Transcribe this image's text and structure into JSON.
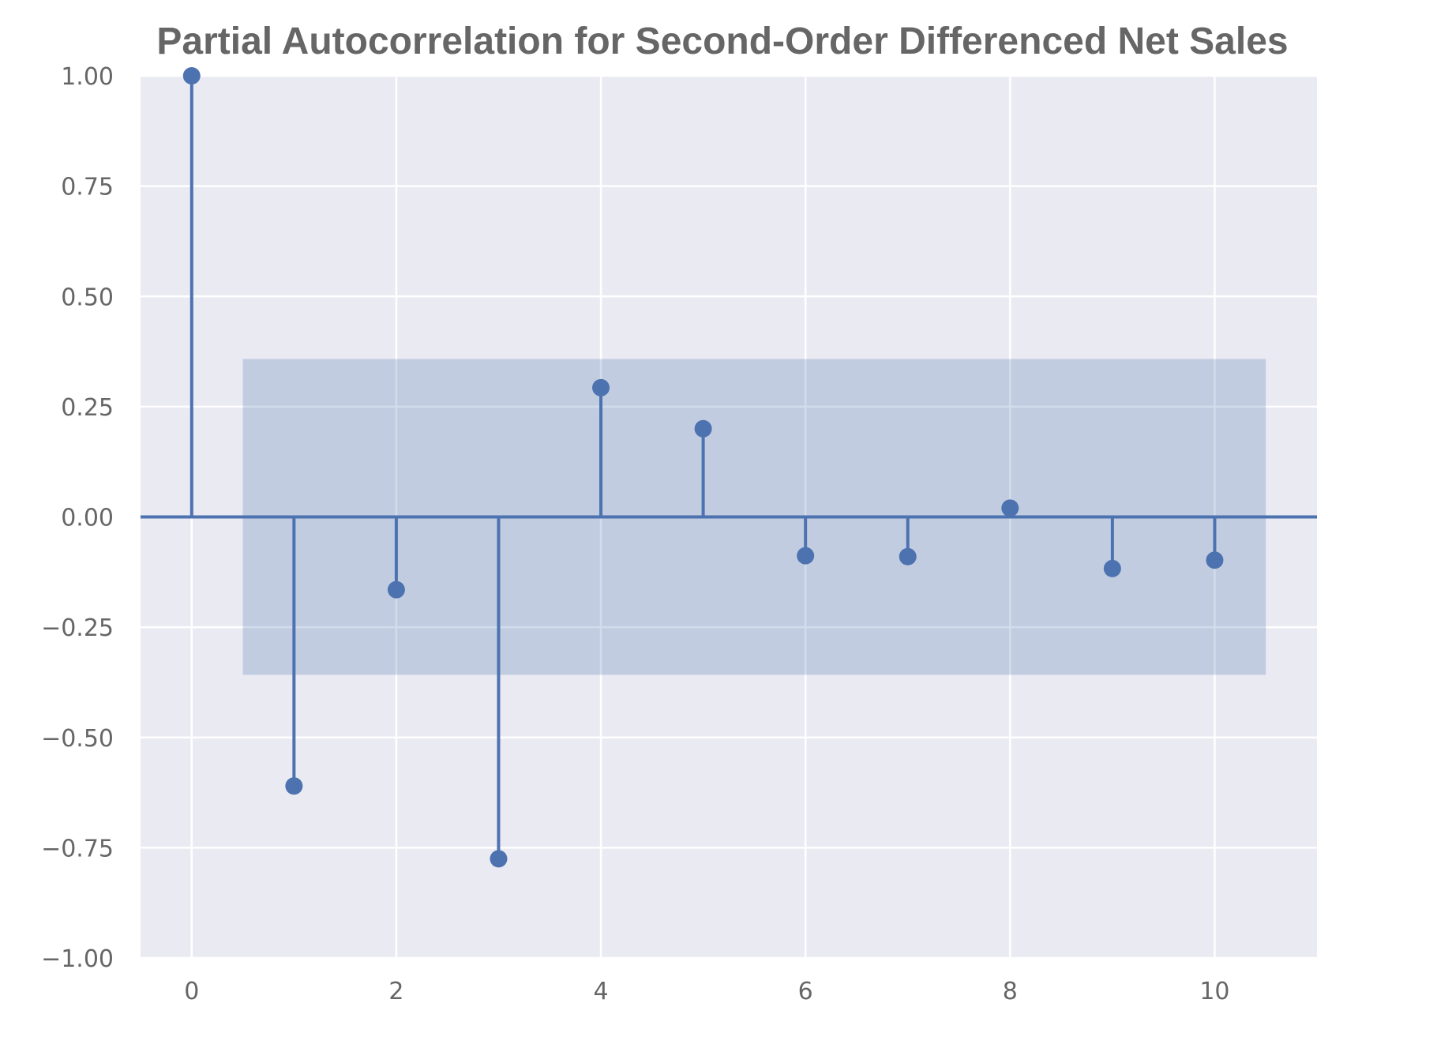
{
  "chart_data": {
    "type": "stem",
    "title": "Partial Autocorrelation for Second-Order Differenced Net Sales",
    "xlabel": "",
    "ylabel": "",
    "x": [
      0,
      1,
      2,
      3,
      4,
      5,
      6,
      7,
      8,
      9,
      10
    ],
    "values": [
      1.0,
      -0.61,
      -0.165,
      -0.775,
      0.293,
      0.2,
      -0.088,
      -0.09,
      0.02,
      -0.117,
      -0.098
    ],
    "confidence_band": {
      "lower": -0.358,
      "upper": 0.358,
      "x_start": 0.5,
      "x_end": 10.5
    },
    "xlim": [
      -0.5,
      11
    ],
    "ylim": [
      -1.0,
      1.0
    ],
    "x_ticks": [
      0,
      2,
      4,
      6,
      8,
      10
    ],
    "x_tick_labels": [
      "0",
      "2",
      "4",
      "6",
      "8",
      "10"
    ],
    "y_ticks": [
      1.0,
      0.75,
      0.5,
      0.25,
      0.0,
      -0.25,
      -0.5,
      -0.75,
      -1.0
    ],
    "y_tick_labels": [
      "1.00",
      "0.75",
      "0.50",
      "0.25",
      "0.00",
      "−0.25",
      "−0.50",
      "−0.75",
      "−1.00"
    ],
    "grid": true,
    "colors": {
      "background": "#eaeaf2",
      "grid": "#ffffff",
      "stem": "#4c72b0",
      "band": "#4c72b0",
      "text": "#666666"
    }
  }
}
